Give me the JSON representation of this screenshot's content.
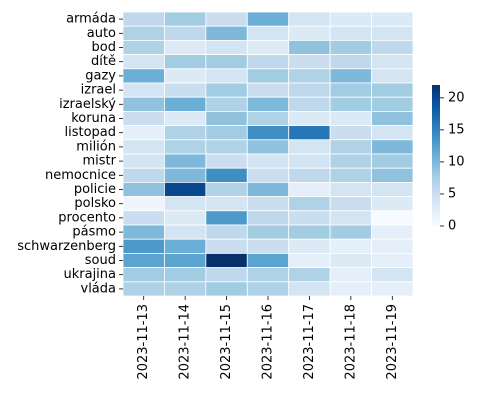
{
  "chart_data": {
    "type": "heatmap",
    "title": "",
    "xlabel": "",
    "ylabel": "",
    "colormap": "Blues",
    "cell_border_color": "#ffffff",
    "x_categories": [
      "2023-11-13",
      "2023-11-14",
      "2023-11-15",
      "2023-11-16",
      "2023-11-17",
      "2023-11-18",
      "2023-11-19"
    ],
    "y_categories": [
      "armáda",
      "auto",
      "bod",
      "dítě",
      "gazy",
      "izrael",
      "izraelský",
      "koruna",
      "listopad",
      "milión",
      "mistr",
      "nemocnice",
      "policie",
      "polsko",
      "procento",
      "pásmo",
      "schwarzenberg",
      "soud",
      "ukrajina",
      "vláda"
    ],
    "values": [
      [
        6,
        8,
        5,
        11,
        4,
        3,
        3
      ],
      [
        7,
        6,
        10,
        4,
        3,
        4,
        4
      ],
      [
        7,
        3,
        4,
        3,
        9,
        8,
        6
      ],
      [
        4,
        8,
        8,
        6,
        5,
        6,
        4
      ],
      [
        11,
        3,
        4,
        8,
        7,
        10,
        4
      ],
      [
        4,
        5,
        8,
        5,
        6,
        8,
        8
      ],
      [
        9,
        11,
        7,
        10,
        6,
        8,
        8
      ],
      [
        5,
        3,
        9,
        7,
        3,
        3,
        9
      ],
      [
        2,
        7,
        8,
        14,
        16,
        5,
        4
      ],
      [
        4,
        7,
        7,
        9,
        4,
        7,
        10
      ],
      [
        4,
        10,
        5,
        4,
        4,
        7,
        8
      ],
      [
        6,
        10,
        14,
        5,
        6,
        7,
        9
      ],
      [
        9,
        20,
        7,
        10,
        2,
        4,
        4
      ],
      [
        1,
        4,
        4,
        5,
        7,
        5,
        3
      ],
      [
        5,
        3,
        13,
        6,
        5,
        4,
        0
      ],
      [
        10,
        4,
        6,
        8,
        8,
        8,
        2
      ],
      [
        13,
        11,
        5,
        5,
        3,
        2,
        2
      ],
      [
        12,
        12,
        22,
        12,
        2,
        3,
        2
      ],
      [
        8,
        8,
        6,
        7,
        7,
        2,
        4
      ],
      [
        7,
        7,
        8,
        7,
        4,
        2,
        2
      ]
    ],
    "colorbar": {
      "min": 0,
      "max": 22,
      "ticks": [
        0,
        5,
        10,
        15,
        20
      ]
    }
  }
}
